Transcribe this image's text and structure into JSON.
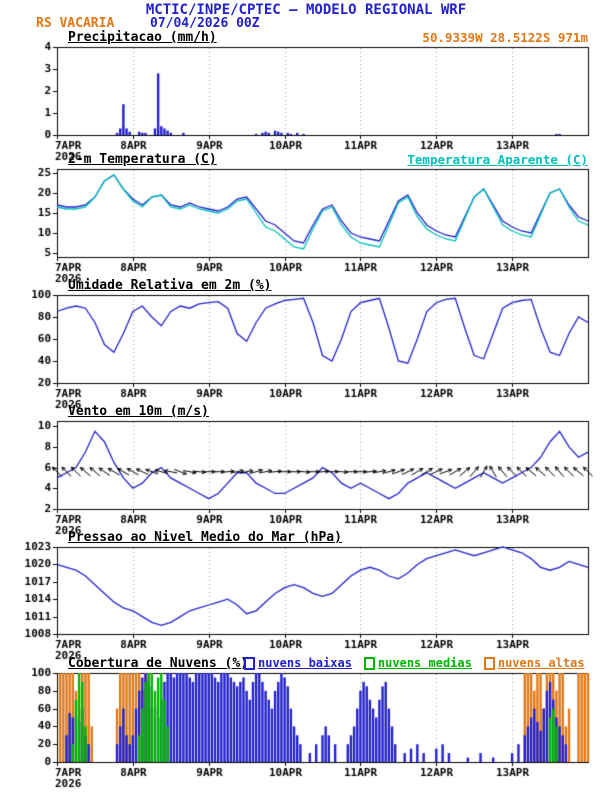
{
  "header": {
    "title": "MCTIC/INPE/CPTEC — MODELO REGIONAL WRF",
    "station": "RS VACARIA",
    "init_time": "07/04/2026 00Z",
    "coords": "50.9339W 28.5122S 971m"
  },
  "colors": {
    "blue": "#2222cc",
    "cyan": "#00c2bc",
    "orange": "#e07818",
    "green": "#00b400",
    "black": "#000000",
    "grid": "#9a9a9a"
  },
  "x_axis": {
    "tick_hours": [
      0,
      24,
      48,
      72,
      96,
      120,
      144
    ],
    "tick_labels": [
      "7APR",
      "8APR",
      "9APR",
      "10APR",
      "11APR",
      "12APR",
      "13APR"
    ],
    "year_label": "2026",
    "hours_total": 168
  },
  "chart_data": [
    {
      "type": "bar",
      "title": "Precipitacao (mm/h)",
      "ylim": [
        0,
        4
      ],
      "yticks": [
        0,
        1,
        2,
        3,
        4
      ],
      "series": [
        {
          "name": "precipitacao",
          "color": "blue",
          "values_by_hour": {
            "19": 0.1,
            "20": 0.3,
            "21": 1.4,
            "22": 0.3,
            "23": 0.15,
            "26": 0.15,
            "27": 0.1,
            "28": 0.1,
            "31": 0.3,
            "32": 2.8,
            "33": 0.4,
            "34": 0.3,
            "35": 0.2,
            "36": 0.1,
            "40": 0.1,
            "63": 0.05,
            "65": 0.1,
            "66": 0.15,
            "67": 0.1,
            "69": 0.2,
            "70": 0.15,
            "71": 0.1,
            "73": 0.1,
            "74": 0.05,
            "76": 0.1,
            "78": 0.05,
            "158": 0.05,
            "159": 0.05
          }
        }
      ]
    },
    {
      "type": "line",
      "title": "2-m Temperatura (C)",
      "legend_right": "Temperatura Aparente (C)",
      "ylim": [
        4,
        26
      ],
      "yticks": [
        5,
        10,
        15,
        20,
        25
      ],
      "x_step_hours": 3,
      "series": [
        {
          "name": "temperatura_2m",
          "color": "blue",
          "values": [
            17,
            16.5,
            16.5,
            17,
            19,
            23,
            24.5,
            21,
            18.5,
            17,
            19,
            19.5,
            17,
            16.5,
            17.5,
            16.5,
            16,
            15.5,
            16.5,
            18.5,
            19,
            16,
            13,
            12,
            10,
            8,
            7.5,
            12,
            16,
            17,
            13,
            10,
            9,
            8.5,
            8,
            13,
            18,
            19.5,
            15,
            12,
            10.5,
            9.5,
            9,
            14,
            19,
            21,
            17,
            13,
            11.5,
            10.5,
            10,
            15,
            20,
            21,
            17,
            14,
            13
          ]
        },
        {
          "name": "temperatura_aparente",
          "color": "cyan",
          "values": [
            16.5,
            16,
            16,
            16.5,
            19,
            23,
            24.5,
            21,
            18,
            16.5,
            19,
            19.5,
            16.5,
            16,
            17,
            16,
            15.5,
            15,
            16,
            18,
            18.5,
            15,
            11.5,
            10.5,
            8.5,
            6.5,
            6,
            11,
            15.5,
            16.5,
            12,
            9,
            7.5,
            7,
            6.5,
            12,
            17.5,
            19,
            14,
            11,
            9.5,
            8.5,
            8,
            13.5,
            19,
            21,
            16.5,
            12,
            10.5,
            9.5,
            9,
            14.5,
            20,
            21,
            16.5,
            13,
            12
          ]
        }
      ]
    },
    {
      "type": "line",
      "title": "Umidade Relativa em 2m (%)",
      "ylim": [
        20,
        100
      ],
      "yticks": [
        20,
        40,
        60,
        80,
        100
      ],
      "x_step_hours": 3,
      "series": [
        {
          "name": "umidade_relativa",
          "color": "blue",
          "values": [
            85,
            88,
            90,
            88,
            75,
            55,
            48,
            65,
            85,
            90,
            80,
            72,
            85,
            90,
            88,
            92,
            93,
            94,
            88,
            65,
            58,
            75,
            88,
            92,
            95,
            96,
            97,
            75,
            45,
            40,
            60,
            85,
            93,
            95,
            97,
            70,
            40,
            38,
            60,
            85,
            93,
            96,
            97,
            70,
            45,
            42,
            65,
            88,
            93,
            95,
            96,
            70,
            48,
            45,
            65,
            80,
            75
          ]
        }
      ]
    },
    {
      "type": "line",
      "title": "Vento em 10m (m/s)",
      "ylim": [
        2,
        10.5
      ],
      "yticks": [
        2,
        4,
        6,
        8,
        10
      ],
      "x_step_hours": 3,
      "barb_anchor_value": 5.6,
      "wind_dir_deg": [
        45,
        45,
        45,
        50,
        50,
        55,
        60,
        60,
        60,
        65,
        70,
        75,
        80,
        250,
        260,
        265,
        270,
        270,
        275,
        280,
        280,
        285,
        280,
        275,
        270,
        270,
        265,
        270,
        275,
        270,
        265,
        270,
        270,
        275,
        280,
        285,
        290,
        295,
        300,
        300,
        295,
        290,
        300,
        310,
        320,
        330,
        30,
        40,
        45,
        45,
        50,
        50,
        45,
        40,
        45,
        50,
        45
      ],
      "series": [
        {
          "name": "vento_velocidade",
          "color": "blue",
          "values": [
            5,
            5.5,
            6,
            7.5,
            9.5,
            8.5,
            6.5,
            5,
            4,
            4.5,
            5.5,
            6,
            5,
            4.5,
            4,
            3.5,
            3,
            3.5,
            4.5,
            5.5,
            5.5,
            4.5,
            4,
            3.5,
            3.5,
            4,
            4.5,
            5,
            6,
            5.5,
            4.5,
            4,
            4.5,
            4,
            3.5,
            3,
            3.5,
            4.5,
            5,
            5.5,
            5,
            4.5,
            4,
            4.5,
            5,
            5.5,
            5,
            4.5,
            5,
            5.5,
            6,
            7,
            8.5,
            9.5,
            8,
            7,
            7.5
          ]
        }
      ]
    },
    {
      "type": "line",
      "title": "Pressao ao Nivel Medio do Mar (hPa)",
      "ylim": [
        1008,
        1023
      ],
      "yticks": [
        1008,
        1011,
        1014,
        1017,
        1020,
        1023
      ],
      "x_step_hours": 3,
      "series": [
        {
          "name": "pressao_nivel_mar",
          "color": "blue",
          "values": [
            1020,
            1019.5,
            1019,
            1018,
            1016.5,
            1015,
            1013.5,
            1012.5,
            1012,
            1011,
            1010,
            1009.5,
            1010,
            1011,
            1012,
            1012.5,
            1013,
            1013.5,
            1014,
            1013,
            1011.5,
            1012,
            1013.5,
            1015,
            1016,
            1016.5,
            1016,
            1015,
            1014.5,
            1015,
            1016.5,
            1018,
            1019,
            1019.5,
            1019,
            1018,
            1017.5,
            1018.5,
            1020,
            1021,
            1021.5,
            1022,
            1022.5,
            1022,
            1021.5,
            1022,
            1022.5,
            1023,
            1022.5,
            1022,
            1021,
            1019.5,
            1019,
            1019.5,
            1020.5,
            1020,
            1019.5
          ]
        }
      ]
    },
    {
      "type": "bar",
      "title": "Cobertura de Nuvens (%)",
      "ylim": [
        0,
        100
      ],
      "yticks": [
        0,
        20,
        40,
        60,
        80,
        100
      ],
      "legend": [
        {
          "label": "nuvens baixas",
          "color": "blue"
        },
        {
          "label": "nuvens medias",
          "color": "green"
        },
        {
          "label": "nuvens altas",
          "color": "orange"
        }
      ],
      "series": [
        {
          "name": "nuvens_altas",
          "color": "orange",
          "values_by_hour": {
            "1": 100,
            "2": 100,
            "3": 100,
            "4": 100,
            "5": 100,
            "6": 80,
            "7": 60,
            "8": 100,
            "9": 100,
            "10": 100,
            "11": 40,
            "19": 60,
            "20": 100,
            "21": 100,
            "22": 100,
            "23": 100,
            "24": 100,
            "25": 100,
            "26": 100,
            "27": 80,
            "28": 100,
            "29": 100,
            "30": 60,
            "148": 100,
            "149": 100,
            "150": 100,
            "151": 80,
            "152": 100,
            "153": 100,
            "154": 60,
            "155": 100,
            "156": 100,
            "157": 100,
            "158": 80,
            "159": 100,
            "160": 100,
            "161": 40,
            "162": 60,
            "165": 100,
            "166": 100,
            "167": 100,
            "168": 100
          }
        },
        {
          "name": "nuvens_baixas",
          "color": "blue",
          "values_by_hour": {
            "3": 30,
            "4": 55,
            "5": 50,
            "6": 50,
            "7": 45,
            "8": 60,
            "9": 30,
            "10": 20,
            "19": 20,
            "20": 40,
            "21": 60,
            "22": 30,
            "23": 20,
            "24": 30,
            "25": 60,
            "26": 80,
            "27": 95,
            "28": 100,
            "29": 90,
            "30": 85,
            "31": 60,
            "32": 50,
            "33": 70,
            "34": 90,
            "35": 100,
            "36": 100,
            "37": 95,
            "38": 100,
            "39": 100,
            "40": 100,
            "41": 100,
            "42": 95,
            "43": 90,
            "44": 100,
            "45": 100,
            "46": 100,
            "47": 100,
            "48": 100,
            "49": 100,
            "50": 95,
            "51": 90,
            "52": 100,
            "53": 100,
            "54": 100,
            "55": 95,
            "56": 90,
            "57": 85,
            "58": 90,
            "59": 95,
            "60": 80,
            "61": 70,
            "62": 90,
            "63": 100,
            "64": 100,
            "65": 90,
            "66": 80,
            "67": 70,
            "68": 60,
            "69": 80,
            "70": 90,
            "71": 100,
            "72": 95,
            "73": 85,
            "74": 60,
            "75": 40,
            "76": 30,
            "77": 20,
            "80": 10,
            "82": 20,
            "84": 30,
            "85": 40,
            "86": 30,
            "88": 20,
            "92": 20,
            "93": 30,
            "94": 40,
            "95": 60,
            "96": 80,
            "97": 90,
            "98": 85,
            "99": 70,
            "100": 60,
            "101": 50,
            "102": 70,
            "103": 85,
            "104": 90,
            "105": 60,
            "106": 40,
            "107": 20,
            "110": 10,
            "112": 15,
            "114": 20,
            "116": 10,
            "120": 15,
            "122": 20,
            "124": 10,
            "130": 5,
            "134": 10,
            "138": 5,
            "144": 10,
            "146": 20,
            "148": 30,
            "149": 40,
            "150": 50,
            "151": 60,
            "152": 45,
            "153": 35,
            "154": 60,
            "155": 80,
            "156": 90,
            "157": 70,
            "158": 50,
            "159": 40,
            "160": 30,
            "161": 20
          }
        },
        {
          "name": "nuvens_medias",
          "color": "green",
          "values_by_hour": {
            "5": 20,
            "6": 70,
            "7": 100,
            "8": 90,
            "9": 40,
            "26": 30,
            "27": 60,
            "28": 90,
            "29": 100,
            "30": 100,
            "31": 80,
            "32": 95,
            "33": 100,
            "34": 70,
            "35": 40,
            "156": 50,
            "157": 60,
            "158": 40
          }
        }
      ]
    }
  ]
}
